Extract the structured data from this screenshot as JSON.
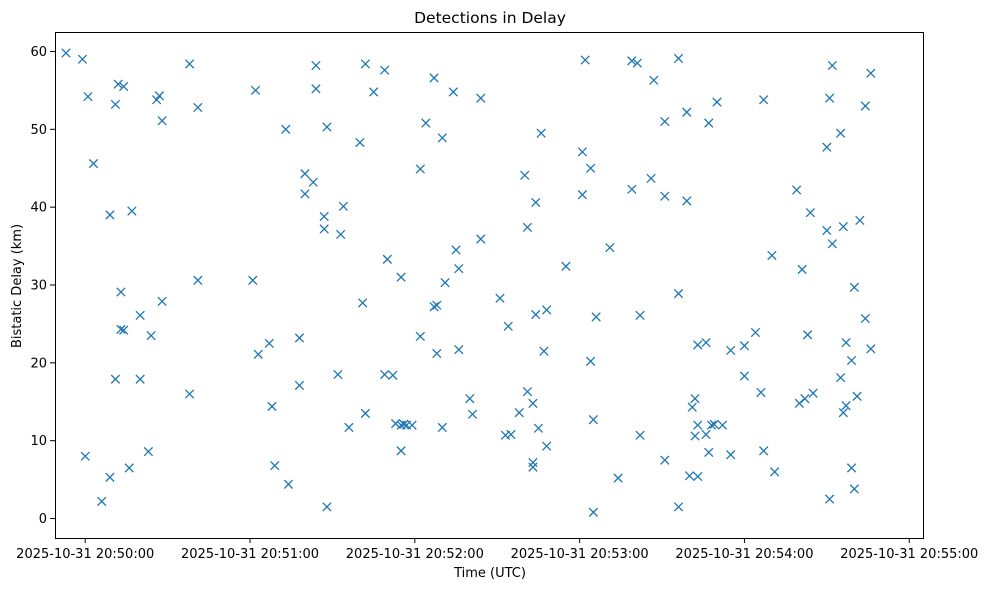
{
  "chart_data": {
    "type": "scatter",
    "title": "Detections in Delay",
    "xlabel": "Time (UTC)",
    "ylabel": "Bistatic Delay (km)",
    "x_axis_type": "datetime",
    "xlim": [
      "2025-10-31 20:49:49",
      "2025-10-31 20:55:05"
    ],
    "ylim": [
      -2.5,
      62.5
    ],
    "xticks": [
      "2025-10-31 20:50:00",
      "2025-10-31 20:51:00",
      "2025-10-31 20:52:00",
      "2025-10-31 20:53:00",
      "2025-10-31 20:54:00",
      "2025-10-31 20:55:00"
    ],
    "yticks": [
      "0",
      "10",
      "20",
      "30",
      "40",
      "50",
      "60"
    ],
    "marker": "x",
    "color": "#1f77b4",
    "grid": false,
    "points": [
      {
        "x": "2025-10-31 20:49:53",
        "y": 59.8
      },
      {
        "x": "2025-10-31 20:49:59",
        "y": 59.0
      },
      {
        "x": "2025-10-31 20:50:01",
        "y": 54.2
      },
      {
        "x": "2025-10-31 20:50:03",
        "y": 45.6
      },
      {
        "x": "2025-10-31 20:50:00",
        "y": 8.0
      },
      {
        "x": "2025-10-31 20:50:06",
        "y": 2.2
      },
      {
        "x": "2025-10-31 20:50:09",
        "y": 5.3
      },
      {
        "x": "2025-10-31 20:50:09",
        "y": 39.0
      },
      {
        "x": "2025-10-31 20:50:11",
        "y": 53.2
      },
      {
        "x": "2025-10-31 20:50:12",
        "y": 55.8
      },
      {
        "x": "2025-10-31 20:50:14",
        "y": 55.5
      },
      {
        "x": "2025-10-31 20:50:11",
        "y": 17.9
      },
      {
        "x": "2025-10-31 20:50:13",
        "y": 29.1
      },
      {
        "x": "2025-10-31 20:50:13",
        "y": 24.3
      },
      {
        "x": "2025-10-31 20:50:14",
        "y": 24.2
      },
      {
        "x": "2025-10-31 20:50:16",
        "y": 6.5
      },
      {
        "x": "2025-10-31 20:50:17",
        "y": 39.5
      },
      {
        "x": "2025-10-31 20:50:20",
        "y": 26.1
      },
      {
        "x": "2025-10-31 20:50:20",
        "y": 17.9
      },
      {
        "x": "2025-10-31 20:50:23",
        "y": 8.6
      },
      {
        "x": "2025-10-31 20:50:24",
        "y": 23.5
      },
      {
        "x": "2025-10-31 20:50:26",
        "y": 53.8
      },
      {
        "x": "2025-10-31 20:50:27",
        "y": 54.3
      },
      {
        "x": "2025-10-31 20:50:28",
        "y": 51.1
      },
      {
        "x": "2025-10-31 20:50:28",
        "y": 27.9
      },
      {
        "x": "2025-10-31 20:50:38",
        "y": 58.4
      },
      {
        "x": "2025-10-31 20:50:41",
        "y": 52.8
      },
      {
        "x": "2025-10-31 20:50:41",
        "y": 30.6
      },
      {
        "x": "2025-10-31 20:50:38",
        "y": 16.0
      },
      {
        "x": "2025-10-31 20:51:02",
        "y": 55.0
      },
      {
        "x": "2025-10-31 20:51:01",
        "y": 30.6
      },
      {
        "x": "2025-10-31 20:51:03",
        "y": 21.1
      },
      {
        "x": "2025-10-31 20:51:07",
        "y": 22.5
      },
      {
        "x": "2025-10-31 20:51:08",
        "y": 14.4
      },
      {
        "x": "2025-10-31 20:51:09",
        "y": 6.8
      },
      {
        "x": "2025-10-31 20:51:13",
        "y": 50.0
      },
      {
        "x": "2025-10-31 20:51:14",
        "y": 4.4
      },
      {
        "x": "2025-10-31 20:51:18",
        "y": 23.2
      },
      {
        "x": "2025-10-31 20:51:18",
        "y": 17.1
      },
      {
        "x": "2025-10-31 20:51:20",
        "y": 44.3
      },
      {
        "x": "2025-10-31 20:51:20",
        "y": 41.7
      },
      {
        "x": "2025-10-31 20:51:23",
        "y": 43.2
      },
      {
        "x": "2025-10-31 20:51:24",
        "y": 58.2
      },
      {
        "x": "2025-10-31 20:51:24",
        "y": 55.2
      },
      {
        "x": "2025-10-31 20:51:27",
        "y": 38.8
      },
      {
        "x": "2025-10-31 20:51:27",
        "y": 37.2
      },
      {
        "x": "2025-10-31 20:51:28",
        "y": 50.3
      },
      {
        "x": "2025-10-31 20:51:28",
        "y": 1.5
      },
      {
        "x": "2025-10-31 20:51:33",
        "y": 36.5
      },
      {
        "x": "2025-10-31 20:51:34",
        "y": 40.1
      },
      {
        "x": "2025-10-31 20:51:32",
        "y": 18.5
      },
      {
        "x": "2025-10-31 20:51:36",
        "y": 11.7
      },
      {
        "x": "2025-10-31 20:51:40",
        "y": 48.3
      },
      {
        "x": "2025-10-31 20:51:42",
        "y": 58.4
      },
      {
        "x": "2025-10-31 20:51:41",
        "y": 27.7
      },
      {
        "x": "2025-10-31 20:51:42",
        "y": 13.5
      },
      {
        "x": "2025-10-31 20:51:45",
        "y": 54.8
      },
      {
        "x": "2025-10-31 20:51:49",
        "y": 57.6
      },
      {
        "x": "2025-10-31 20:51:50",
        "y": 33.3
      },
      {
        "x": "2025-10-31 20:51:49",
        "y": 18.5
      },
      {
        "x": "2025-10-31 20:51:52",
        "y": 18.4
      },
      {
        "x": "2025-10-31 20:51:53",
        "y": 12.2
      },
      {
        "x": "2025-10-31 20:51:55",
        "y": 31.0
      },
      {
        "x": "2025-10-31 20:51:55",
        "y": 12.0
      },
      {
        "x": "2025-10-31 20:51:56",
        "y": 12.1
      },
      {
        "x": "2025-10-31 20:51:57",
        "y": 12.0
      },
      {
        "x": "2025-10-31 20:51:55",
        "y": 8.7
      },
      {
        "x": "2025-10-31 20:51:59",
        "y": 12.0
      },
      {
        "x": "2025-10-31 20:52:02",
        "y": 44.9
      },
      {
        "x": "2025-10-31 20:52:02",
        "y": 23.4
      },
      {
        "x": "2025-10-31 20:52:04",
        "y": 50.8
      },
      {
        "x": "2025-10-31 20:52:07",
        "y": 56.6
      },
      {
        "x": "2025-10-31 20:52:07",
        "y": 27.2
      },
      {
        "x": "2025-10-31 20:52:08",
        "y": 27.4
      },
      {
        "x": "2025-10-31 20:52:08",
        "y": 21.2
      },
      {
        "x": "2025-10-31 20:52:10",
        "y": 48.9
      },
      {
        "x": "2025-10-31 20:52:11",
        "y": 30.3
      },
      {
        "x": "2025-10-31 20:52:10",
        "y": 11.7
      },
      {
        "x": "2025-10-31 20:52:14",
        "y": 54.8
      },
      {
        "x": "2025-10-31 20:52:15",
        "y": 34.5
      },
      {
        "x": "2025-10-31 20:52:16",
        "y": 32.1
      },
      {
        "x": "2025-10-31 20:52:16",
        "y": 21.7
      },
      {
        "x": "2025-10-31 20:52:20",
        "y": 15.4
      },
      {
        "x": "2025-10-31 20:52:21",
        "y": 13.4
      },
      {
        "x": "2025-10-31 20:52:24",
        "y": 54.0
      },
      {
        "x": "2025-10-31 20:52:24",
        "y": 35.9
      },
      {
        "x": "2025-10-31 20:52:31",
        "y": 28.3
      },
      {
        "x": "2025-10-31 20:52:33",
        "y": 10.7
      },
      {
        "x": "2025-10-31 20:52:34",
        "y": 24.7
      },
      {
        "x": "2025-10-31 20:52:35",
        "y": 10.8
      },
      {
        "x": "2025-10-31 20:52:38",
        "y": 13.6
      },
      {
        "x": "2025-10-31 20:52:40",
        "y": 44.1
      },
      {
        "x": "2025-10-31 20:52:41",
        "y": 37.4
      },
      {
        "x": "2025-10-31 20:52:41",
        "y": 16.3
      },
      {
        "x": "2025-10-31 20:52:43",
        "y": 14.8
      },
      {
        "x": "2025-10-31 20:52:44",
        "y": 26.2
      },
      {
        "x": "2025-10-31 20:52:44",
        "y": 40.6
      },
      {
        "x": "2025-10-31 20:52:43",
        "y": 7.2
      },
      {
        "x": "2025-10-31 20:52:43",
        "y": 6.6
      },
      {
        "x": "2025-10-31 20:52:45",
        "y": 11.6
      },
      {
        "x": "2025-10-31 20:52:46",
        "y": 49.5
      },
      {
        "x": "2025-10-31 20:52:47",
        "y": 21.5
      },
      {
        "x": "2025-10-31 20:52:48",
        "y": 26.8
      },
      {
        "x": "2025-10-31 20:52:48",
        "y": 9.3
      },
      {
        "x": "2025-10-31 20:52:55",
        "y": 32.4
      },
      {
        "x": "2025-10-31 20:53:01",
        "y": 47.1
      },
      {
        "x": "2025-10-31 20:53:01",
        "y": 41.6
      },
      {
        "x": "2025-10-31 20:53:02",
        "y": 58.9
      },
      {
        "x": "2025-10-31 20:53:04",
        "y": 45.0
      },
      {
        "x": "2025-10-31 20:53:04",
        "y": 20.2
      },
      {
        "x": "2025-10-31 20:53:06",
        "y": 25.9
      },
      {
        "x": "2025-10-31 20:53:05",
        "y": 12.7
      },
      {
        "x": "2025-10-31 20:53:05",
        "y": 0.8
      },
      {
        "x": "2025-10-31 20:53:11",
        "y": 34.8
      },
      {
        "x": "2025-10-31 20:53:14",
        "y": 5.2
      },
      {
        "x": "2025-10-31 20:53:19",
        "y": 58.8
      },
      {
        "x": "2025-10-31 20:53:19",
        "y": 42.3
      },
      {
        "x": "2025-10-31 20:53:21",
        "y": 58.5
      },
      {
        "x": "2025-10-31 20:53:22",
        "y": 26.1
      },
      {
        "x": "2025-10-31 20:53:22",
        "y": 10.7
      },
      {
        "x": "2025-10-31 20:53:26",
        "y": 43.7
      },
      {
        "x": "2025-10-31 20:53:27",
        "y": 56.3
      },
      {
        "x": "2025-10-31 20:53:31",
        "y": 51.0
      },
      {
        "x": "2025-10-31 20:53:31",
        "y": 41.4
      },
      {
        "x": "2025-10-31 20:53:31",
        "y": 7.5
      },
      {
        "x": "2025-10-31 20:53:36",
        "y": 59.1
      },
      {
        "x": "2025-10-31 20:53:36",
        "y": 28.9
      },
      {
        "x": "2025-10-31 20:53:36",
        "y": 1.5
      },
      {
        "x": "2025-10-31 20:53:39",
        "y": 40.8
      },
      {
        "x": "2025-10-31 20:53:39",
        "y": 52.2
      },
      {
        "x": "2025-10-31 20:53:40",
        "y": 5.5
      },
      {
        "x": "2025-10-31 20:53:41",
        "y": 14.3
      },
      {
        "x": "2025-10-31 20:53:42",
        "y": 15.4
      },
      {
        "x": "2025-10-31 20:53:42",
        "y": 10.6
      },
      {
        "x": "2025-10-31 20:53:43",
        "y": 22.3
      },
      {
        "x": "2025-10-31 20:53:43",
        "y": 12.0
      },
      {
        "x": "2025-10-31 20:53:43",
        "y": 5.4
      },
      {
        "x": "2025-10-31 20:53:46",
        "y": 22.6
      },
      {
        "x": "2025-10-31 20:53:46",
        "y": 10.8
      },
      {
        "x": "2025-10-31 20:53:47",
        "y": 50.8
      },
      {
        "x": "2025-10-31 20:53:47",
        "y": 8.5
      },
      {
        "x": "2025-10-31 20:53:48",
        "y": 12.0
      },
      {
        "x": "2025-10-31 20:53:49",
        "y": 12.1
      },
      {
        "x": "2025-10-31 20:53:50",
        "y": 53.5
      },
      {
        "x": "2025-10-31 20:53:52",
        "y": 12.0
      },
      {
        "x": "2025-10-31 20:53:55",
        "y": 21.6
      },
      {
        "x": "2025-10-31 20:53:55",
        "y": 8.2
      },
      {
        "x": "2025-10-31 20:54:00",
        "y": 22.2
      },
      {
        "x": "2025-10-31 20:54:00",
        "y": 18.3
      },
      {
        "x": "2025-10-31 20:54:04",
        "y": 23.9
      },
      {
        "x": "2025-10-31 20:54:06",
        "y": 16.2
      },
      {
        "x": "2025-10-31 20:54:07",
        "y": 53.8
      },
      {
        "x": "2025-10-31 20:54:07",
        "y": 8.7
      },
      {
        "x": "2025-10-31 20:54:10",
        "y": 33.8
      },
      {
        "x": "2025-10-31 20:54:11",
        "y": 6.0
      },
      {
        "x": "2025-10-31 20:54:19",
        "y": 42.2
      },
      {
        "x": "2025-10-31 20:54:20",
        "y": 14.8
      },
      {
        "x": "2025-10-31 20:54:21",
        "y": 32.0
      },
      {
        "x": "2025-10-31 20:54:22",
        "y": 15.4
      },
      {
        "x": "2025-10-31 20:54:23",
        "y": 23.6
      },
      {
        "x": "2025-10-31 20:54:24",
        "y": 39.3
      },
      {
        "x": "2025-10-31 20:54:25",
        "y": 16.1
      },
      {
        "x": "2025-10-31 20:54:30",
        "y": 47.7
      },
      {
        "x": "2025-10-31 20:54:30",
        "y": 37.0
      },
      {
        "x": "2025-10-31 20:54:31",
        "y": 54.0
      },
      {
        "x": "2025-10-31 20:54:31",
        "y": 2.5
      },
      {
        "x": "2025-10-31 20:54:32",
        "y": 35.3
      },
      {
        "x": "2025-10-31 20:54:32",
        "y": 58.2
      },
      {
        "x": "2025-10-31 20:54:35",
        "y": 49.5
      },
      {
        "x": "2025-10-31 20:54:35",
        "y": 18.1
      },
      {
        "x": "2025-10-31 20:54:36",
        "y": 37.5
      },
      {
        "x": "2025-10-31 20:54:36",
        "y": 13.6
      },
      {
        "x": "2025-10-31 20:54:37",
        "y": 22.6
      },
      {
        "x": "2025-10-31 20:54:37",
        "y": 14.5
      },
      {
        "x": "2025-10-31 20:54:39",
        "y": 20.3
      },
      {
        "x": "2025-10-31 20:54:39",
        "y": 6.5
      },
      {
        "x": "2025-10-31 20:54:40",
        "y": 29.7
      },
      {
        "x": "2025-10-31 20:54:41",
        "y": 15.7
      },
      {
        "x": "2025-10-31 20:54:40",
        "y": 3.8
      },
      {
        "x": "2025-10-31 20:54:42",
        "y": 38.3
      },
      {
        "x": "2025-10-31 20:54:44",
        "y": 25.7
      },
      {
        "x": "2025-10-31 20:54:44",
        "y": 53.0
      },
      {
        "x": "2025-10-31 20:54:46",
        "y": 57.2
      },
      {
        "x": "2025-10-31 20:54:46",
        "y": 21.8
      }
    ]
  }
}
